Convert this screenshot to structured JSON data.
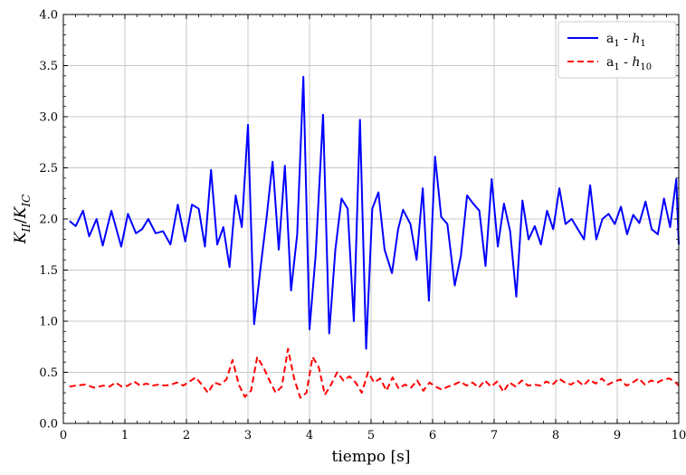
{
  "chart_data": {
    "type": "line",
    "xlabel": "tiempo [s]",
    "ylabel": "K_II / K_IC",
    "ylabel_parts": {
      "main1": "K",
      "sub1": "II",
      "slash": "/",
      "main2": "K",
      "sub2": "IC"
    },
    "xlim": [
      0,
      10
    ],
    "ylim": [
      0.0,
      4.0
    ],
    "xticks": [
      "0",
      "1",
      "2",
      "3",
      "4",
      "5",
      "6",
      "7",
      "8",
      "9",
      "10"
    ],
    "yticks": [
      "0.0",
      "0.5",
      "1.0",
      "1.5",
      "2.0",
      "2.5",
      "3.0",
      "3.5",
      "4.0"
    ],
    "grid": true,
    "legend_position": "top-right",
    "series": [
      {
        "name": "a1 - h1",
        "legend": {
          "a": "a",
          "a_sub": "1",
          "sep": " - ",
          "h": "h",
          "h_sub": "1"
        },
        "color": "#0000ff",
        "style": "solid",
        "x": [
          0.1,
          0.2,
          0.32,
          0.42,
          0.54,
          0.64,
          0.78,
          0.94,
          1.05,
          1.18,
          1.28,
          1.38,
          1.5,
          1.62,
          1.74,
          1.86,
          1.98,
          2.09,
          2.2,
          2.3,
          2.4,
          2.5,
          2.6,
          2.7,
          2.8,
          2.9,
          3.0,
          3.1,
          3.2,
          3.3,
          3.4,
          3.5,
          3.6,
          3.7,
          3.8,
          3.9,
          4.0,
          4.1,
          4.22,
          4.32,
          4.42,
          4.52,
          4.62,
          4.72,
          4.82,
          4.92,
          5.02,
          5.12,
          5.22,
          5.34,
          5.44,
          5.52,
          5.64,
          5.74,
          5.84,
          5.94,
          6.04,
          6.14,
          6.24,
          6.36,
          6.46,
          6.56,
          6.66,
          6.76,
          6.86,
          6.96,
          7.06,
          7.16,
          7.26,
          7.36,
          7.46,
          7.56,
          7.66,
          7.76,
          7.86,
          7.96,
          8.06,
          8.16,
          8.26,
          8.36,
          8.46,
          8.56,
          8.66,
          8.76,
          8.86,
          8.96,
          9.06,
          9.16,
          9.26,
          9.36,
          9.46,
          9.56,
          9.66,
          9.76,
          9.86,
          9.96,
          10.0
        ],
        "y": [
          1.98,
          1.93,
          2.08,
          1.83,
          2.0,
          1.74,
          2.08,
          1.73,
          2.05,
          1.86,
          1.9,
          2.0,
          1.86,
          1.88,
          1.75,
          2.14,
          1.78,
          2.14,
          2.1,
          1.73,
          2.48,
          1.75,
          1.92,
          1.53,
          2.23,
          1.92,
          2.92,
          0.97,
          1.5,
          2.0,
          2.56,
          1.7,
          2.52,
          1.3,
          1.85,
          3.39,
          0.92,
          1.65,
          3.02,
          0.88,
          1.7,
          2.2,
          2.1,
          1.0,
          2.97,
          0.73,
          2.1,
          2.26,
          1.7,
          1.47,
          1.9,
          2.09,
          1.95,
          1.6,
          2.3,
          1.2,
          2.61,
          2.02,
          1.95,
          1.35,
          1.64,
          2.23,
          2.15,
          2.08,
          1.54,
          2.39,
          1.73,
          2.15,
          1.88,
          1.24,
          2.18,
          1.8,
          1.93,
          1.75,
          2.08,
          1.9,
          2.3,
          1.95,
          2.0,
          1.9,
          1.8,
          2.33,
          1.8,
          2.0,
          2.05,
          1.95,
          2.12,
          1.85,
          2.04,
          1.96,
          2.17,
          1.9,
          1.85,
          2.2,
          1.92,
          2.39,
          1.75
        ]
      },
      {
        "name": "a1 - h10",
        "legend": {
          "a": "a",
          "a_sub": "1",
          "sep": " - ",
          "h": "h",
          "h_sub": "10"
        },
        "color": "#ff0000",
        "style": "dashed",
        "x": [
          0.1,
          0.2,
          0.35,
          0.5,
          0.65,
          0.75,
          0.85,
          0.95,
          1.05,
          1.15,
          1.25,
          1.35,
          1.45,
          1.55,
          1.65,
          1.75,
          1.85,
          1.95,
          2.05,
          2.15,
          2.25,
          2.35,
          2.45,
          2.55,
          2.65,
          2.75,
          2.85,
          2.95,
          3.05,
          3.15,
          3.25,
          3.35,
          3.45,
          3.55,
          3.65,
          3.75,
          3.85,
          3.95,
          4.05,
          4.15,
          4.25,
          4.35,
          4.45,
          4.55,
          4.65,
          4.75,
          4.85,
          4.95,
          5.05,
          5.15,
          5.25,
          5.35,
          5.45,
          5.55,
          5.65,
          5.75,
          5.85,
          5.95,
          6.05,
          6.15,
          6.25,
          6.35,
          6.45,
          6.55,
          6.65,
          6.75,
          6.85,
          6.95,
          7.05,
          7.15,
          7.25,
          7.35,
          7.45,
          7.55,
          7.65,
          7.75,
          7.85,
          7.95,
          8.05,
          8.15,
          8.25,
          8.35,
          8.45,
          8.55,
          8.65,
          8.75,
          8.85,
          8.95,
          9.05,
          9.15,
          9.25,
          9.35,
          9.45,
          9.55,
          9.65,
          9.75,
          9.85,
          9.95,
          10.0
        ],
        "y": [
          0.36,
          0.37,
          0.38,
          0.35,
          0.37,
          0.36,
          0.4,
          0.36,
          0.37,
          0.41,
          0.37,
          0.39,
          0.37,
          0.38,
          0.37,
          0.38,
          0.4,
          0.37,
          0.41,
          0.45,
          0.38,
          0.3,
          0.4,
          0.38,
          0.43,
          0.62,
          0.38,
          0.26,
          0.32,
          0.65,
          0.55,
          0.42,
          0.3,
          0.36,
          0.73,
          0.44,
          0.25,
          0.3,
          0.65,
          0.55,
          0.28,
          0.38,
          0.5,
          0.42,
          0.46,
          0.4,
          0.3,
          0.5,
          0.4,
          0.44,
          0.32,
          0.45,
          0.34,
          0.38,
          0.35,
          0.42,
          0.32,
          0.4,
          0.36,
          0.33,
          0.36,
          0.38,
          0.41,
          0.37,
          0.4,
          0.35,
          0.42,
          0.36,
          0.41,
          0.31,
          0.4,
          0.36,
          0.42,
          0.37,
          0.38,
          0.37,
          0.41,
          0.38,
          0.44,
          0.4,
          0.38,
          0.42,
          0.37,
          0.43,
          0.39,
          0.44,
          0.38,
          0.41,
          0.43,
          0.37,
          0.4,
          0.44,
          0.38,
          0.42,
          0.4,
          0.43,
          0.44,
          0.4,
          0.37
        ]
      }
    ]
  }
}
